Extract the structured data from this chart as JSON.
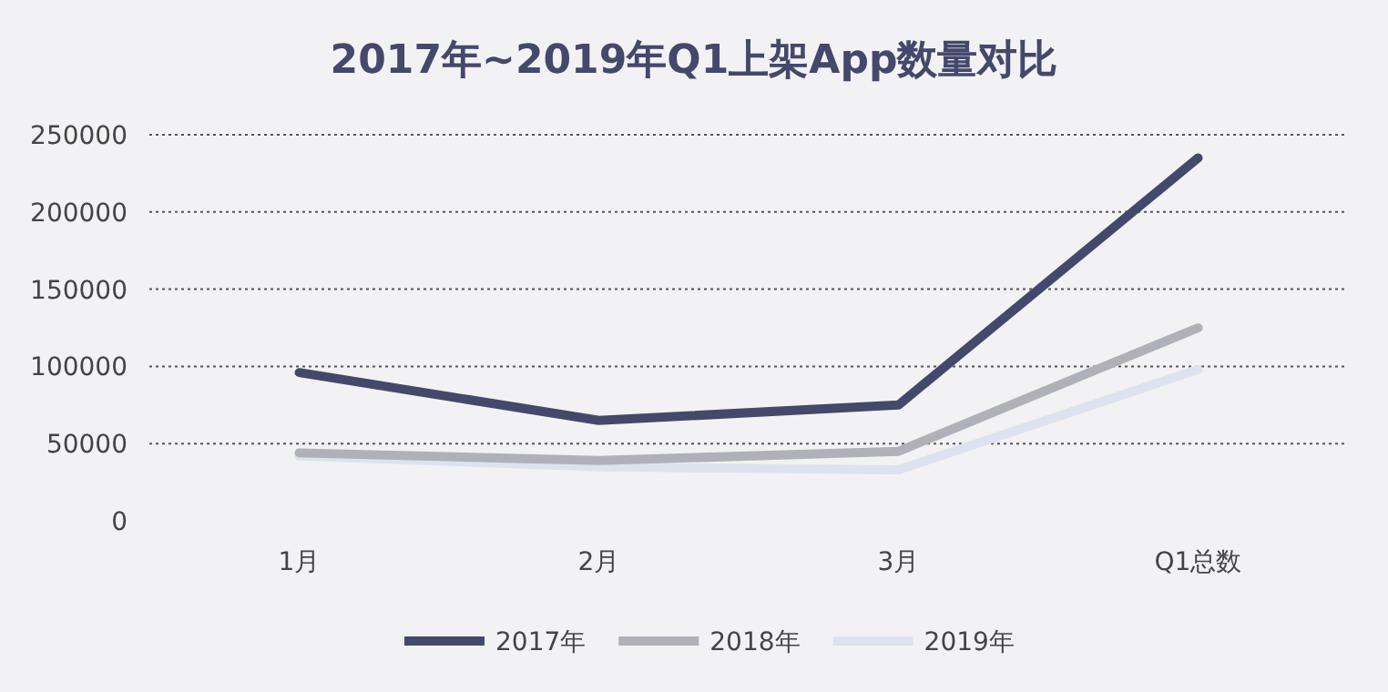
{
  "chart_data": {
    "type": "line",
    "title": "2017年~2019年Q1上架App数量对比",
    "categories": [
      "1月",
      "2月",
      "3月",
      "Q1总数"
    ],
    "series": [
      {
        "name": "2017年",
        "color": "#44486a",
        "values": [
          96000,
          65000,
          75000,
          235000
        ]
      },
      {
        "name": "2018年",
        "color": "#b0b0b8",
        "values": [
          44000,
          39000,
          45000,
          125000
        ]
      },
      {
        "name": "2019年",
        "color": "#dde3ee",
        "values": [
          42000,
          35000,
          33000,
          98000
        ]
      }
    ],
    "ylim": [
      0,
      250000
    ],
    "yticks": [
      0,
      50000,
      100000,
      150000,
      200000,
      250000
    ],
    "grid": "y",
    "legend": "bottom",
    "marker": "none",
    "line_style": "solid"
  }
}
